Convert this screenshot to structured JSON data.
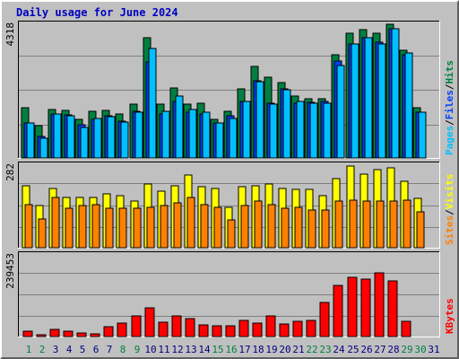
{
  "title": "Daily usage for June 2024",
  "colors": {
    "hits": "#008040",
    "files": "#0040ff",
    "pages": "#00c0ff",
    "visits": "#ffff00",
    "sites": "#ff8000",
    "kbytes": "#ff0000",
    "weekend": "#008040",
    "weekday": "#000080"
  },
  "chart_data": [
    {
      "type": "bar",
      "ymax_label": "4318",
      "ymax": 4318,
      "legend": [
        "Pages",
        "/",
        "Files",
        "/",
        "Hits"
      ],
      "categories": [
        "1",
        "2",
        "3",
        "4",
        "5",
        "6",
        "7",
        "8",
        "9",
        "10",
        "11",
        "12",
        "13",
        "14",
        "15",
        "16",
        "17",
        "18",
        "19",
        "20",
        "21",
        "22",
        "23",
        "24",
        "25",
        "26",
        "27",
        "28",
        "29",
        "30",
        "31"
      ],
      "weekend_days": [
        1,
        2,
        8,
        9,
        15,
        16,
        22,
        23,
        29,
        30
      ],
      "series": [
        {
          "name": "Hits",
          "values": [
            1650,
            1050,
            1600,
            1580,
            1280,
            1550,
            1580,
            1450,
            1780,
            3970,
            1770,
            2310,
            1770,
            1790,
            1260,
            1540,
            2280,
            3020,
            2650,
            2480,
            2030,
            1950,
            1950,
            3400,
            4110,
            4230,
            4110,
            4400,
            3540,
            1670,
            0
          ]
        },
        {
          "name": "Files",
          "values": [
            1150,
            700,
            1450,
            1430,
            1080,
            1280,
            1400,
            1200,
            1550,
            3150,
            1440,
            1850,
            1520,
            1460,
            1140,
            1380,
            1860,
            2550,
            1790,
            2280,
            1800,
            1840,
            1870,
            3200,
            3750,
            3950,
            3810,
            4250,
            3400,
            1510,
            0
          ]
        },
        {
          "name": "Pages",
          "values": [
            1150,
            650,
            1450,
            1400,
            1000,
            1300,
            1350,
            1180,
            1500,
            3600,
            1550,
            2050,
            1600,
            1520,
            1150,
            1300,
            1860,
            2500,
            1770,
            2250,
            1850,
            1800,
            1800,
            3050,
            3750,
            3950,
            3750,
            4250,
            3450,
            1500,
            0
          ]
        }
      ]
    },
    {
      "type": "bar",
      "ymax_label": "282",
      "ymax": 282,
      "legend": [
        "Sites",
        "/",
        "Visits"
      ],
      "categories": [
        "1",
        "2",
        "3",
        "4",
        "5",
        "6",
        "7",
        "8",
        "9",
        "10",
        "11",
        "12",
        "13",
        "14",
        "15",
        "16",
        "17",
        "18",
        "19",
        "20",
        "21",
        "22",
        "23",
        "24",
        "25",
        "26",
        "27",
        "28",
        "29",
        "30",
        "31"
      ],
      "series": [
        {
          "name": "Visits",
          "values": [
            215,
            145,
            205,
            175,
            175,
            175,
            185,
            180,
            160,
            220,
            195,
            215,
            250,
            210,
            205,
            140,
            210,
            215,
            220,
            205,
            200,
            200,
            180,
            240,
            282,
            255,
            270,
            275,
            230,
            170,
            0
          ]
        },
        {
          "name": "Sites",
          "values": [
            150,
            100,
            175,
            135,
            145,
            150,
            135,
            135,
            135,
            140,
            145,
            155,
            175,
            150,
            140,
            95,
            145,
            160,
            150,
            135,
            140,
            130,
            130,
            160,
            165,
            160,
            160,
            160,
            165,
            125,
            0
          ]
        }
      ]
    },
    {
      "type": "bar",
      "ymax_label": "239453",
      "ymax": 239453,
      "legend": [
        "KBytes"
      ],
      "categories": [
        "1",
        "2",
        "3",
        "4",
        "5",
        "6",
        "7",
        "8",
        "9",
        "10",
        "11",
        "12",
        "13",
        "14",
        "15",
        "16",
        "17",
        "18",
        "19",
        "20",
        "21",
        "22",
        "23",
        "24",
        "25",
        "26",
        "27",
        "28",
        "29",
        "30",
        "31"
      ],
      "series": [
        {
          "name": "KBytes",
          "values": [
            17000,
            6000,
            21000,
            15000,
            10000,
            9000,
            29000,
            41000,
            62000,
            84000,
            43000,
            62000,
            52000,
            35000,
            33000,
            33000,
            48000,
            40000,
            60000,
            38000,
            46000,
            47000,
            102000,
            152000,
            175000,
            171000,
            190000,
            165000,
            45000,
            0,
            0
          ]
        }
      ]
    }
  ]
}
